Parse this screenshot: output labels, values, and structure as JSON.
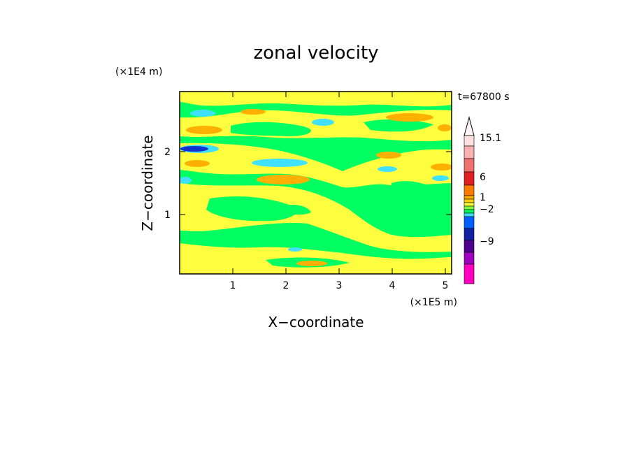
{
  "chart_data": {
    "type": "heatmap",
    "title": "zonal velocity",
    "time_label": "t=67800 s",
    "xlabel": "X−coordinate",
    "ylabel": "Z−coordinate",
    "x_unit": "(×1E5 m)",
    "y_unit": "(×1E4 m)",
    "xlim": [
      0,
      5.12
    ],
    "ylim": [
      0,
      2.9
    ],
    "x_ticks": [
      "1",
      "2",
      "3",
      "4",
      "5"
    ],
    "y_ticks": [
      "1",
      "2"
    ],
    "colorbar": {
      "labels": [
        "15.1",
        "6",
        "1",
        "−2",
        "−9"
      ],
      "colors": [
        "#ffe0e0",
        "#f8b0b0",
        "#f07070",
        "#e02020",
        "#ff7a00",
        "#ffb000",
        "#ffd000",
        "#ffff40",
        "#80ff40",
        "#00ff60",
        "#40e0ff",
        "#0060ff",
        "#1020a0",
        "#500090",
        "#a000c0",
        "#ff00c0"
      ]
    },
    "palette": {
      "background": "#00ff60",
      "yellow": "#ffff40",
      "orange": "#ffb000",
      "cyan": "#40e0ff",
      "blue": "#1030d0"
    }
  }
}
